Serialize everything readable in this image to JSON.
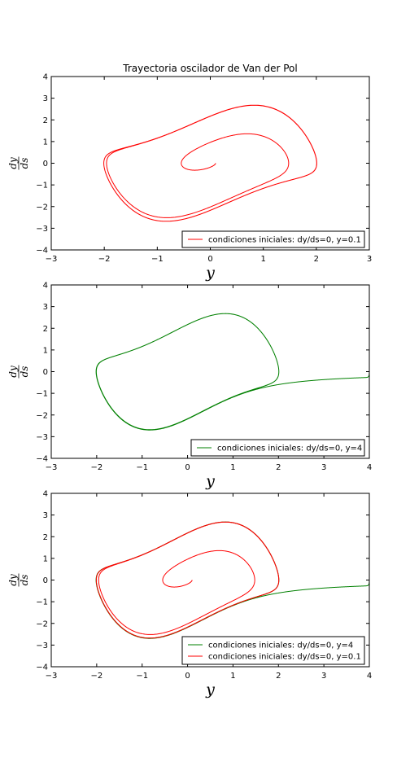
{
  "colors": {
    "series_a": "#ff0000",
    "series_b": "#008000"
  },
  "chart_data": [
    {
      "type": "line",
      "title": "Trayectoria oscilador de Van der Pol",
      "xlabel": "y",
      "ylabel_num": "dy",
      "ylabel_den": "ds",
      "xlim": [
        -3,
        3
      ],
      "ylim": [
        -4,
        4
      ],
      "xticks": [
        "−3",
        "−2",
        "−1",
        "0",
        "1",
        "2",
        "3"
      ],
      "yticks": [
        "−4",
        "−3",
        "−2",
        "−1",
        "0",
        "1",
        "2",
        "3",
        "4"
      ],
      "legend_position": "lower-right",
      "series": [
        {
          "name": "condiciones iniciales: dy/ds=0, y=0.1",
          "color": "#ff0000",
          "y0": 0.1,
          "v0": 0.0
        }
      ]
    },
    {
      "type": "line",
      "title": "",
      "xlabel": "y",
      "ylabel_num": "dy",
      "ylabel_den": "ds",
      "xlim": [
        -3,
        4
      ],
      "ylim": [
        -4,
        4
      ],
      "xticks": [
        "−3",
        "−2",
        "−1",
        "0",
        "1",
        "2",
        "3",
        "4"
      ],
      "yticks": [
        "−4",
        "−3",
        "−2",
        "−1",
        "0",
        "1",
        "2",
        "3",
        "4"
      ],
      "legend_position": "lower-right",
      "series": [
        {
          "name": "condiciones iniciales: dy/ds=0, y=4",
          "color": "#008000",
          "y0": 4.0,
          "v0": 0.0
        }
      ]
    },
    {
      "type": "line",
      "title": "",
      "xlabel": "y",
      "ylabel_num": "dy",
      "ylabel_den": "ds",
      "xlim": [
        -3,
        4
      ],
      "ylim": [
        -4,
        4
      ],
      "xticks": [
        "−3",
        "−2",
        "−1",
        "0",
        "1",
        "2",
        "3",
        "4"
      ],
      "yticks": [
        "−4",
        "−3",
        "−2",
        "−1",
        "0",
        "1",
        "2",
        "3",
        "4"
      ],
      "legend_position": "lower-right",
      "series": [
        {
          "name": "condiciones iniciales: dy/ds=0, y=4",
          "color": "#008000",
          "y0": 4.0,
          "v0": 0.0
        },
        {
          "name": "condiciones iniciales: dy/ds=0, y=0.1",
          "color": "#ff0000",
          "y0": 0.1,
          "v0": 0.0
        }
      ]
    }
  ]
}
